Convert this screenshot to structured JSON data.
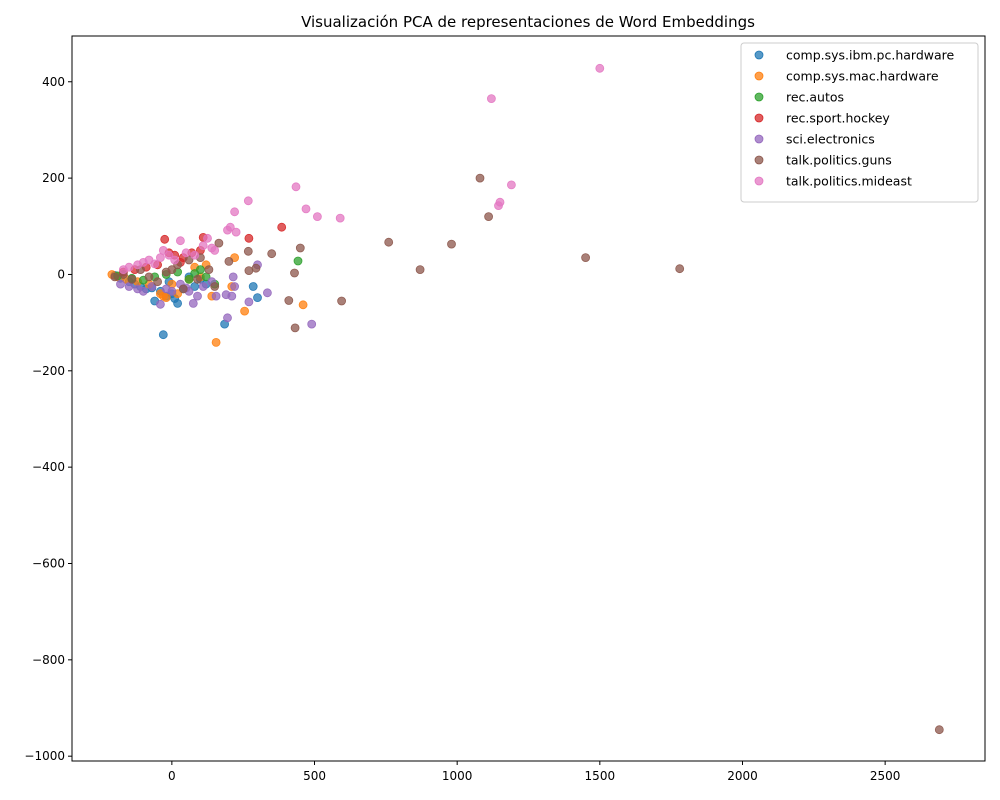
{
  "chart_data": {
    "type": "scatter",
    "title": "Visualización PCA de representaciones de Word Embeddings",
    "xlabel": "",
    "ylabel": "",
    "xlim": [
      -350,
      2850
    ],
    "ylim": [
      -1010,
      495
    ],
    "xticks": [
      0,
      500,
      1000,
      1500,
      2000,
      2500
    ],
    "yticks": [
      400,
      200,
      0,
      -200,
      -400,
      -600,
      -800,
      -1000
    ],
    "legend_position": "top-right",
    "grid": false,
    "series": [
      {
        "name": "comp.sys.ibm.pc.hardware",
        "color": "#1f77b4",
        "points": [
          [
            -200,
            -2
          ],
          [
            -180,
            -8
          ],
          [
            -150,
            -15
          ],
          [
            -130,
            -20
          ],
          [
            -110,
            -25
          ],
          [
            -90,
            -30
          ],
          [
            -70,
            -28
          ],
          [
            -60,
            -55
          ],
          [
            -40,
            -35
          ],
          [
            -30,
            -125
          ],
          [
            -20,
            -45
          ],
          [
            0,
            -40
          ],
          [
            10,
            -50
          ],
          [
            20,
            -60
          ],
          [
            40,
            -30
          ],
          [
            80,
            -25
          ],
          [
            100,
            -10
          ],
          [
            120,
            -20
          ],
          [
            185,
            -103
          ],
          [
            285,
            -25
          ],
          [
            300,
            -48
          ],
          [
            60,
            -5
          ],
          [
            -10,
            -15
          ]
        ]
      },
      {
        "name": "comp.sys.mac.hardware",
        "color": "#ff7f0e",
        "points": [
          [
            -210,
            0
          ],
          [
            -190,
            -5
          ],
          [
            -160,
            -10
          ],
          [
            -120,
            -15
          ],
          [
            -80,
            -20
          ],
          [
            -40,
            -40
          ],
          [
            -30,
            -45
          ],
          [
            -20,
            -48
          ],
          [
            0,
            -20
          ],
          [
            20,
            -40
          ],
          [
            60,
            -10
          ],
          [
            100,
            -5
          ],
          [
            120,
            20
          ],
          [
            140,
            -45
          ],
          [
            155,
            -141
          ],
          [
            210,
            -25
          ],
          [
            220,
            35
          ],
          [
            255,
            -76
          ],
          [
            460,
            -63
          ],
          [
            80,
            15
          ]
        ]
      },
      {
        "name": "rec.autos",
        "color": "#2ca02c",
        "points": [
          [
            -190,
            -3
          ],
          [
            -140,
            -8
          ],
          [
            -100,
            -12
          ],
          [
            -60,
            -5
          ],
          [
            -20,
            0
          ],
          [
            20,
            5
          ],
          [
            60,
            -10
          ],
          [
            100,
            10
          ],
          [
            120,
            -5
          ],
          [
            150,
            -20
          ],
          [
            442,
            28
          ],
          [
            80,
            2
          ]
        ]
      },
      {
        "name": "rec.sport.hockey",
        "color": "#d62728",
        "points": [
          [
            -170,
            5
          ],
          [
            -130,
            10
          ],
          [
            -90,
            15
          ],
          [
            -50,
            20
          ],
          [
            -25,
            73
          ],
          [
            -10,
            45
          ],
          [
            10,
            40
          ],
          [
            40,
            35
          ],
          [
            70,
            45
          ],
          [
            100,
            50
          ],
          [
            110,
            77
          ],
          [
            270,
            75
          ],
          [
            385,
            98
          ],
          [
            30,
            25
          ]
        ]
      },
      {
        "name": "sci.electronics",
        "color": "#9467bd",
        "points": [
          [
            -180,
            -20
          ],
          [
            -150,
            -25
          ],
          [
            -120,
            -30
          ],
          [
            -100,
            -35
          ],
          [
            -70,
            -25
          ],
          [
            -40,
            -62
          ],
          [
            -20,
            -30
          ],
          [
            0,
            -35
          ],
          [
            30,
            -20
          ],
          [
            50,
            -28
          ],
          [
            75,
            -60
          ],
          [
            90,
            -45
          ],
          [
            110,
            -25
          ],
          [
            140,
            -15
          ],
          [
            155,
            -45
          ],
          [
            190,
            -42
          ],
          [
            195,
            -90
          ],
          [
            210,
            -45
          ],
          [
            215,
            -5
          ],
          [
            220,
            -25
          ],
          [
            270,
            -57
          ],
          [
            300,
            20
          ],
          [
            335,
            -38
          ],
          [
            490,
            -103
          ],
          [
            60,
            -35
          ]
        ]
      },
      {
        "name": "talk.politics.guns",
        "color": "#8c564b",
        "points": [
          [
            -200,
            -5
          ],
          [
            -170,
            0
          ],
          [
            -140,
            -10
          ],
          [
            -110,
            10
          ],
          [
            -80,
            -5
          ],
          [
            -50,
            -15
          ],
          [
            -20,
            5
          ],
          [
            0,
            10
          ],
          [
            20,
            20
          ],
          [
            40,
            -30
          ],
          [
            60,
            30
          ],
          [
            90,
            -10
          ],
          [
            100,
            35
          ],
          [
            130,
            10
          ],
          [
            150,
            -25
          ],
          [
            165,
            65
          ],
          [
            200,
            27
          ],
          [
            268,
            48
          ],
          [
            270,
            8
          ],
          [
            295,
            13
          ],
          [
            350,
            43
          ],
          [
            410,
            -54
          ],
          [
            430,
            3
          ],
          [
            432,
            -111
          ],
          [
            450,
            55
          ],
          [
            595,
            -55
          ],
          [
            760,
            67
          ],
          [
            870,
            10
          ],
          [
            980,
            63
          ],
          [
            1080,
            200
          ],
          [
            1110,
            120
          ],
          [
            1450,
            35
          ],
          [
            1780,
            12
          ],
          [
            2690,
            -945
          ]
        ]
      },
      {
        "name": "talk.politics.mideast",
        "color": "#e377c2",
        "points": [
          [
            -170,
            10
          ],
          [
            -150,
            15
          ],
          [
            -120,
            20
          ],
          [
            -100,
            25
          ],
          [
            -80,
            30
          ],
          [
            -60,
            22
          ],
          [
            -40,
            35
          ],
          [
            -30,
            50
          ],
          [
            -10,
            40
          ],
          [
            10,
            30
          ],
          [
            30,
            70
          ],
          [
            50,
            45
          ],
          [
            80,
            40
          ],
          [
            110,
            60
          ],
          [
            125,
            75
          ],
          [
            140,
            55
          ],
          [
            150,
            50
          ],
          [
            195,
            92
          ],
          [
            205,
            98
          ],
          [
            220,
            130
          ],
          [
            225,
            88
          ],
          [
            268,
            153
          ],
          [
            435,
            182
          ],
          [
            470,
            136
          ],
          [
            510,
            120
          ],
          [
            590,
            117
          ],
          [
            1120,
            365
          ],
          [
            1145,
            143
          ],
          [
            1150,
            150
          ],
          [
            1190,
            186
          ],
          [
            1500,
            428
          ]
        ]
      }
    ]
  }
}
